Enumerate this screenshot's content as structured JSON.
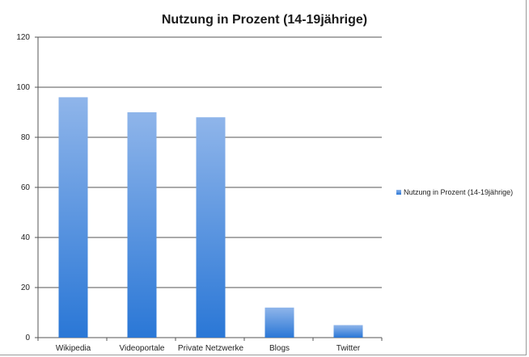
{
  "chart_data": {
    "type": "bar",
    "title": "Nutzung in Prozent (14-19jährige)",
    "categories": [
      "Wikipedia",
      "Videoportale",
      "Private Netzwerke",
      "Blogs",
      "Twitter"
    ],
    "series": [
      {
        "name": "Nutzung in Prozent (14-19jährige)",
        "values": [
          96,
          90,
          88,
          12,
          5
        ]
      }
    ],
    "ylim": [
      0,
      120
    ],
    "yticks": [
      "0",
      "20",
      "40",
      "60",
      "80",
      "100",
      "120"
    ],
    "grid": true,
    "legend_position": "right",
    "colors": {
      "bar_top": "#8fb5ea",
      "bar_bottom": "#2a77d6",
      "grid": "#555555"
    }
  }
}
